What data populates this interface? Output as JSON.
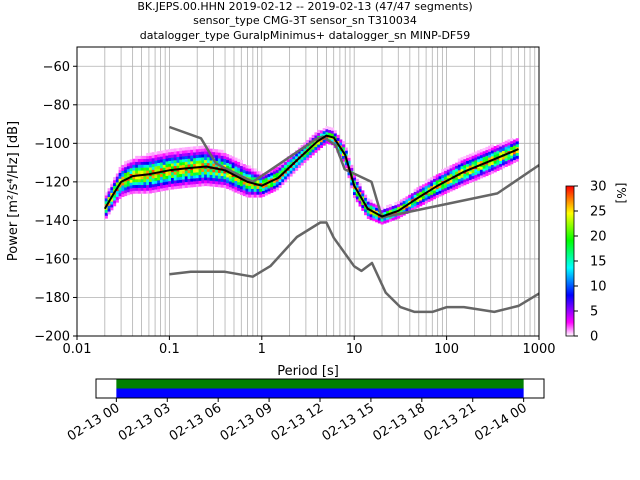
{
  "header": {
    "line1": "BK.JEPS.00.HHN   2019-02-12 -- 2019-02-13  (47/47 segments)",
    "line2": "sensor_type CMG-3T sensor_sn T310034",
    "line3": "datalogger_type GuralpMinimus+ datalogger_sn MINP-DF59"
  },
  "chart_data": [
    {
      "type": "heatmap",
      "title": "",
      "xlabel": "Period [s]",
      "ylabel": "Power [m²/s⁴/Hz] [dB]",
      "xscale": "log",
      "xlim": [
        0.01,
        1000
      ],
      "ylim": [
        -200,
        -50
      ],
      "x_ticks": [
        0.01,
        0.1,
        1,
        10,
        100,
        1000
      ],
      "x_tick_labels": [
        "0.01",
        "0.1",
        "1",
        "10",
        "100",
        "1000"
      ],
      "y_ticks": [
        -200,
        -180,
        -160,
        -140,
        -120,
        -100,
        -80,
        -60
      ],
      "y_tick_labels": [
        "−200",
        "−180",
        "−160",
        "−140",
        "−120",
        "−100",
        "−80",
        "−60"
      ],
      "grid": true,
      "colorbar": {
        "label": "[%]",
        "range": [
          0,
          30
        ],
        "ticks": [
          0,
          5,
          10,
          15,
          20,
          25,
          30
        ],
        "colors": [
          "#ffffff",
          "#ff00ff",
          "#8000ff",
          "#0000ff",
          "#0080ff",
          "#00ffff",
          "#00ff80",
          "#00ff00",
          "#80ff00",
          "#ffff00",
          "#ff8000",
          "#ff0000"
        ]
      },
      "series": [
        {
          "role": "noise_model_high",
          "color": "#666666",
          "x": [
            0.1,
            0.22,
            0.32,
            0.8,
            3.8,
            4.6,
            6.3,
            7.9,
            15.4,
            20.0,
            354.8,
            1000
          ],
          "y": [
            -91.5,
            -97.4,
            -110.5,
            -120.0,
            -98.0,
            -96.5,
            -101.0,
            -113.5,
            -120.0,
            -138.5,
            -126.0,
            -111.3
          ]
        },
        {
          "role": "noise_model_low",
          "color": "#666666",
          "x": [
            0.1,
            0.17,
            0.4,
            0.8,
            1.24,
            2.4,
            4.3,
            5.0,
            6.0,
            10.0,
            12.0,
            15.6,
            21.9,
            31.6,
            45.0,
            70.0,
            101.0,
            154.0,
            328.0,
            600.0,
            1000.0
          ],
          "y": [
            -168.0,
            -166.7,
            -166.7,
            -169.2,
            -163.7,
            -148.6,
            -141.1,
            -141.1,
            -149.0,
            -163.8,
            -166.2,
            -162.1,
            -177.5,
            -185.0,
            -187.5,
            -187.5,
            -185.0,
            -185.0,
            -187.5,
            -184.4,
            -178.0
          ]
        },
        {
          "role": "mode",
          "color": "#000000",
          "x": [
            0.02,
            0.025,
            0.03,
            0.04,
            0.06,
            0.1,
            0.15,
            0.25,
            0.4,
            0.7,
            1.0,
            1.5,
            2.5,
            4.0,
            5.0,
            6.0,
            8.0,
            10.0,
            14.0,
            20.0,
            30.0,
            50.0,
            80.0,
            150.0,
            300.0,
            600.0
          ],
          "y": [
            -134,
            -126,
            -120,
            -117,
            -116,
            -114,
            -113,
            -112,
            -114,
            -120,
            -122,
            -118,
            -108,
            -99,
            -96,
            -97,
            -106,
            -122,
            -134,
            -138,
            -135,
            -128,
            -122,
            -115,
            -109,
            -103
          ]
        }
      ],
      "heatmap_band": {
        "center_x": [
          0.02,
          0.025,
          0.03,
          0.04,
          0.06,
          0.1,
          0.15,
          0.25,
          0.4,
          0.7,
          1.0,
          1.5,
          2.5,
          4.0,
          5.0,
          6.0,
          8.0,
          10.0,
          14.0,
          20.0,
          30.0,
          50.0,
          80.0,
          150.0,
          300.0,
          600.0
        ],
        "center_y": [
          -134,
          -126,
          -120,
          -117,
          -116,
          -114,
          -113,
          -112,
          -114,
          -120,
          -122,
          -118,
          -108,
          -99,
          -96,
          -97,
          -106,
          -122,
          -134,
          -138,
          -135,
          -128,
          -122,
          -115,
          -109,
          -103
        ],
        "half_width_db": [
          6,
          7,
          8,
          9,
          10,
          10,
          10,
          10,
          9,
          8,
          6,
          6,
          5,
          5,
          4,
          4,
          5,
          6,
          5,
          4,
          4,
          5,
          6,
          7,
          7,
          6
        ]
      }
    },
    {
      "type": "timeline",
      "role": "data_coverage",
      "x_tick_labels": [
        "02-13 00",
        "02-13 03",
        "02-13 06",
        "02-13 09",
        "02-13 12",
        "02-13 15",
        "02-13 18",
        "02-13 21",
        "02-14 00"
      ],
      "x_tick_hours": [
        0,
        3,
        6,
        9,
        12,
        15,
        18,
        21,
        24
      ],
      "xlim_hours": [
        -1.2,
        25.2
      ],
      "segments": [
        {
          "name": "psd_segments",
          "color": "#008000",
          "start_hour": 0,
          "end_hour": 24
        },
        {
          "name": "data_available",
          "color": "#0000ff",
          "start_hour": 0,
          "end_hour": 24
        }
      ]
    }
  ]
}
